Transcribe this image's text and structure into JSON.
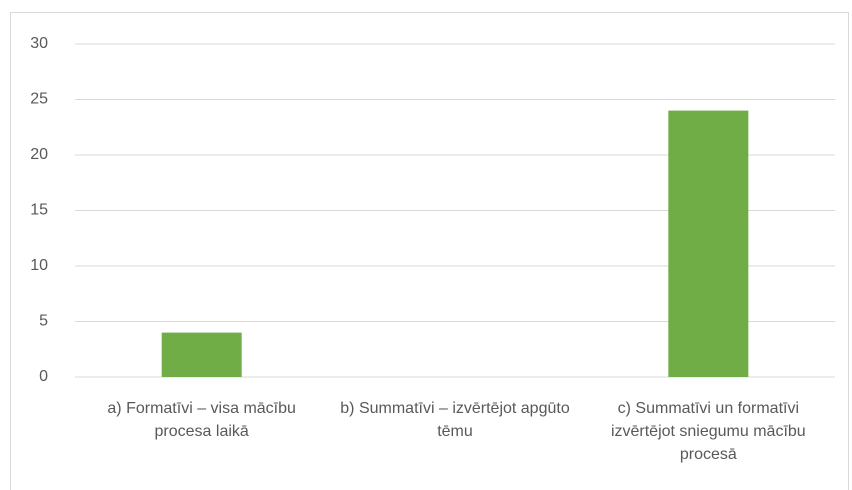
{
  "chart_data": {
    "type": "bar",
    "categories": [
      "a) Formatīvi – visa mācību procesa laikā",
      "b) Summatīvi – izvērtējot apgūto tēmu",
      "c) Summatīvi un formatīvi izvērtējot sniegumu mācību procesā"
    ],
    "values": [
      4,
      0,
      24
    ],
    "color": "#70ad47",
    "ylim": [
      0,
      30
    ],
    "yticks": [
      0,
      5,
      10,
      15,
      20,
      25,
      30
    ],
    "grid": true
  }
}
